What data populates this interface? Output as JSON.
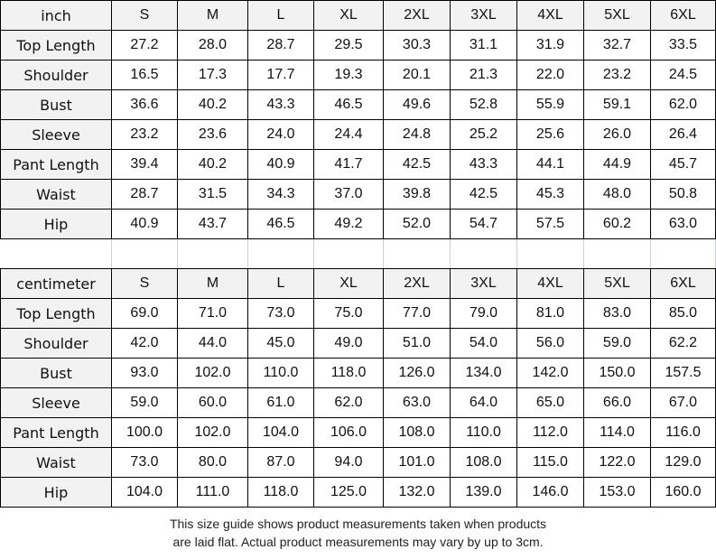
{
  "sizes": [
    "S",
    "M",
    "L",
    "XL",
    "2XL",
    "3XL",
    "4XL",
    "5XL",
    "6XL"
  ],
  "inch": {
    "unit": "inch",
    "rows": [
      {
        "label": "Top Length",
        "values": [
          "27.2",
          "28.0",
          "28.7",
          "29.5",
          "30.3",
          "31.1",
          "31.9",
          "32.7",
          "33.5"
        ]
      },
      {
        "label": "Shoulder",
        "values": [
          "16.5",
          "17.3",
          "17.7",
          "19.3",
          "20.1",
          "21.3",
          "22.0",
          "23.2",
          "24.5"
        ]
      },
      {
        "label": "Bust",
        "values": [
          "36.6",
          "40.2",
          "43.3",
          "46.5",
          "49.6",
          "52.8",
          "55.9",
          "59.1",
          "62.0"
        ]
      },
      {
        "label": "Sleeve",
        "values": [
          "23.2",
          "23.6",
          "24.0",
          "24.4",
          "24.8",
          "25.2",
          "25.6",
          "26.0",
          "26.4"
        ]
      },
      {
        "label": "Pant Length",
        "values": [
          "39.4",
          "40.2",
          "40.9",
          "41.7",
          "42.5",
          "43.3",
          "44.1",
          "44.9",
          "45.7"
        ]
      },
      {
        "label": "Waist",
        "values": [
          "28.7",
          "31.5",
          "34.3",
          "37.0",
          "39.8",
          "42.5",
          "45.3",
          "48.0",
          "50.8"
        ]
      },
      {
        "label": "Hip",
        "values": [
          "40.9",
          "43.7",
          "46.5",
          "49.2",
          "52.0",
          "54.7",
          "57.5",
          "60.2",
          "63.0"
        ]
      }
    ]
  },
  "cm": {
    "unit": "centimeter",
    "rows": [
      {
        "label": "Top Length",
        "values": [
          "69.0",
          "71.0",
          "73.0",
          "75.0",
          "77.0",
          "79.0",
          "81.0",
          "83.0",
          "85.0"
        ]
      },
      {
        "label": "Shoulder",
        "values": [
          "42.0",
          "44.0",
          "45.0",
          "49.0",
          "51.0",
          "54.0",
          "56.0",
          "59.0",
          "62.2"
        ]
      },
      {
        "label": "Bust",
        "values": [
          "93.0",
          "102.0",
          "110.0",
          "118.0",
          "126.0",
          "134.0",
          "142.0",
          "150.0",
          "157.5"
        ]
      },
      {
        "label": "Sleeve",
        "values": [
          "59.0",
          "60.0",
          "61.0",
          "62.0",
          "63.0",
          "64.0",
          "65.0",
          "66.0",
          "67.0"
        ]
      },
      {
        "label": "Pant Length",
        "values": [
          "100.0",
          "102.0",
          "104.0",
          "106.0",
          "108.0",
          "110.0",
          "112.0",
          "114.0",
          "116.0"
        ]
      },
      {
        "label": "Waist",
        "values": [
          "73.0",
          "80.0",
          "87.0",
          "94.0",
          "101.0",
          "108.0",
          "115.0",
          "122.0",
          "129.0"
        ]
      },
      {
        "label": "Hip",
        "values": [
          "104.0",
          "111.0",
          "118.0",
          "125.0",
          "132.0",
          "139.0",
          "146.0",
          "153.0",
          "160.0"
        ]
      }
    ]
  },
  "note": [
    "This size guide shows product measurements taken when products",
    "are laid flat. Actual product measurements may vary by up to 3cm."
  ]
}
